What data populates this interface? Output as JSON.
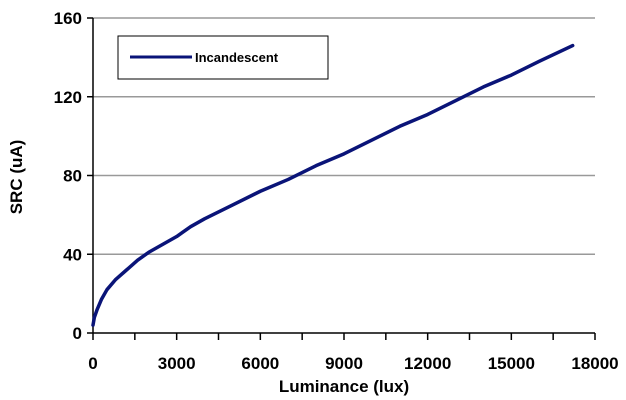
{
  "chart_data": {
    "type": "line",
    "title": "",
    "xlabel": "Luminance (lux)",
    "ylabel": "SRC (uA)",
    "xlim": [
      0,
      18000
    ],
    "ylim": [
      0,
      160
    ],
    "x_ticks": [
      0,
      3000,
      6000,
      9000,
      12000,
      15000,
      18000
    ],
    "y_ticks": [
      0,
      40,
      80,
      120,
      160
    ],
    "x_tick_labels": [
      "0",
      "3000",
      "6000",
      "9000",
      "12000",
      "15000",
      "18000"
    ],
    "y_tick_labels": [
      "0",
      "40",
      "80",
      "120",
      "160"
    ],
    "grid": "horizontal",
    "legend_position": "top-left",
    "series": [
      {
        "name": "Incandescent",
        "color": "#0a1478",
        "x": [
          0,
          50,
          150,
          300,
          500,
          800,
          1200,
          1600,
          2000,
          2500,
          3000,
          3200,
          3500,
          4000,
          5000,
          6000,
          7000,
          8000,
          9000,
          10000,
          11000,
          12000,
          13000,
          14000,
          15000,
          16000,
          17200
        ],
        "y": [
          4,
          8,
          12,
          17,
          22,
          27,
          32,
          37,
          41,
          45,
          49,
          51,
          54,
          58,
          65,
          72,
          78,
          85,
          91,
          98,
          105,
          111,
          118,
          125,
          131,
          138,
          146
        ]
      }
    ]
  }
}
